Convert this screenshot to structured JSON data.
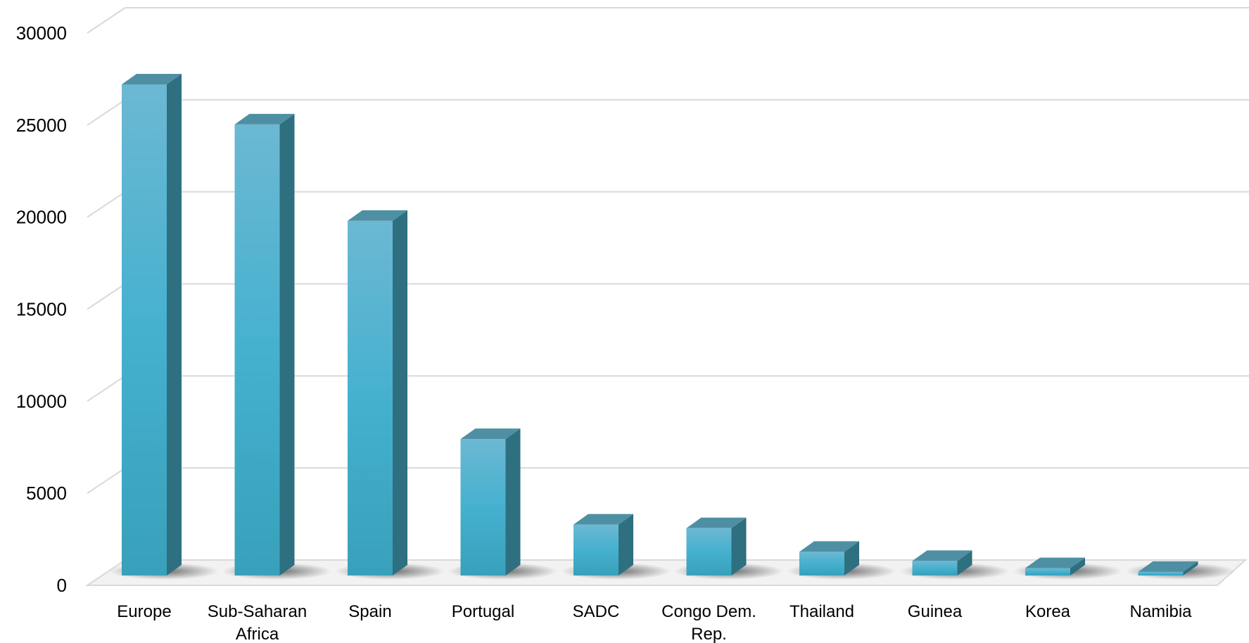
{
  "chart_data": {
    "type": "bar",
    "title": "",
    "xlabel": "",
    "ylabel": "",
    "ylim": [
      0,
      30000
    ],
    "yticks": [
      0,
      5000,
      10000,
      15000,
      20000,
      25000,
      30000
    ],
    "grid": true,
    "categories": [
      [
        "Europe"
      ],
      [
        "Sub-Saharan",
        "Africa"
      ],
      [
        "Spain"
      ],
      [
        "Portugal"
      ],
      [
        "SADC"
      ],
      [
        "Congo Dem.",
        "Rep."
      ],
      [
        "Thailand"
      ],
      [
        "Guinea"
      ],
      [
        "Korea"
      ],
      [
        "Namibia"
      ]
    ],
    "values": [
      27000,
      24800,
      19500,
      7500,
      2800,
      2600,
      1300,
      800,
      400,
      200
    ],
    "colors": {
      "bar_front_top": "#6cb8d3",
      "bar_front_mid": "#45b1cf",
      "bar_front_bottom": "#38a0ba",
      "bar_side": "#2e6f80",
      "bar_top": "#4f8fa3",
      "grid": "#d9d9d9"
    }
  }
}
